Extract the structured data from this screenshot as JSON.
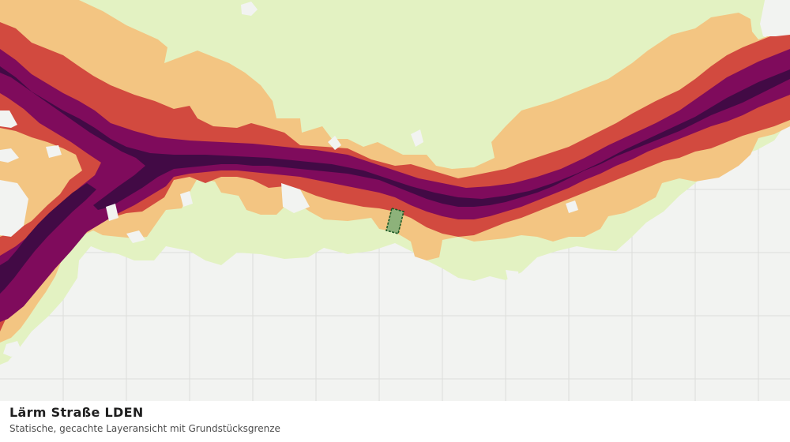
{
  "map": {
    "title": "Lärm Straße LDEN",
    "subtitle": "Statische, gecachte Layeransicht mit Grundstücksgrenze",
    "colors": {
      "background": "#f2f3f1",
      "grid": "#dcdedb",
      "band_lowest": "#e3f2c2",
      "band_low": "#f3c582",
      "band_mid": "#d24a3f",
      "band_high": "#7f0b5c",
      "band_highest": "#420a45",
      "parcel_fill": "#8db27a",
      "parcel_border": "#1e5a26"
    }
  }
}
